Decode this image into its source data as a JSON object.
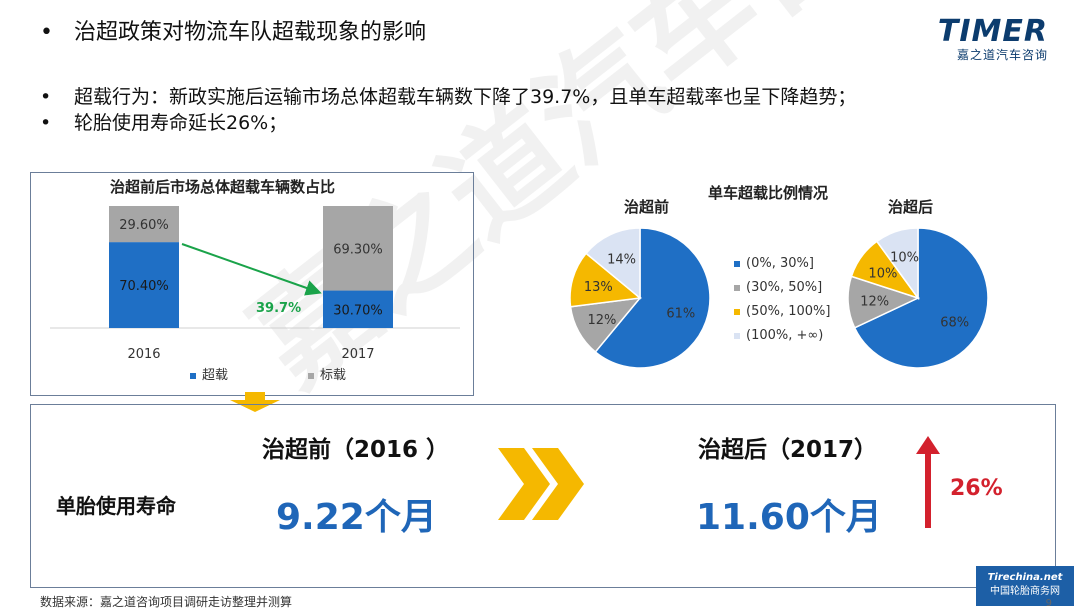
{
  "header": {
    "title": "治超政策对物流车队超载现象的影响",
    "bullet_glyph": "•",
    "logo_text": "TIMER",
    "logo_sub": "嘉之道汽车咨询",
    "watermark": "嘉之道汽车咨询"
  },
  "bullets": [
    "超载行为：新政实施后运输市场总体超载车辆数下降了39.7%，且单车超载率也呈下降趋势；",
    "轮胎使用寿命延长26%；"
  ],
  "chart_data": [
    {
      "type": "bar",
      "title": "治超前后市场总体超载车辆数占比",
      "categories": [
        "2016",
        "2017"
      ],
      "series": [
        {
          "name": "超载",
          "values": [
            70.4,
            30.7
          ],
          "labels": [
            "70.40%",
            "30.70%"
          ],
          "color": "#1f6fc5"
        },
        {
          "name": "标载",
          "values": [
            29.6,
            69.3
          ],
          "labels": [
            "29.60%",
            "69.30%"
          ],
          "color": "#a6a6a6"
        }
      ],
      "stacked": true,
      "ylim": [
        0,
        100
      ],
      "annotation": "39.7%",
      "annotation_color": "#1aa34a"
    },
    {
      "type": "pie",
      "title": "单车超载比例情况",
      "subtitle": "治超前",
      "labels": [
        "(0%, 30%]",
        "(30%, 50%]",
        "(50%, 100%]",
        "(100%, +∞)"
      ],
      "values": [
        61,
        12,
        13,
        14
      ],
      "value_labels": [
        "61%",
        "12%",
        "13%",
        "14%"
      ],
      "colors": [
        "#1f6fc5",
        "#a6a6a6",
        "#f5b800",
        "#dae3f3"
      ]
    },
    {
      "type": "pie",
      "subtitle": "治超后",
      "labels": [
        "(0%, 30%]",
        "(30%, 50%]",
        "(50%, 100%]",
        "(100%, +∞)"
      ],
      "values": [
        68,
        12,
        10,
        10
      ],
      "value_labels": [
        "68%",
        "12%",
        "10%",
        "10%"
      ],
      "colors": [
        "#1f6fc5",
        "#a6a6a6",
        "#f5b800",
        "#dae3f3"
      ]
    }
  ],
  "bottom": {
    "row_label": "单胎使用寿命",
    "before_heading": "治超前（2016 ）",
    "before_value": "9.22个月",
    "after_heading": "治超后（2017）",
    "after_value": "11.60个月",
    "increase": "26%",
    "value_color": "#1f66b8",
    "increase_color": "#d3212d"
  },
  "footer": {
    "source": "数据来源：嘉之道咨询项目调研走访整理并测算",
    "page": "9",
    "badge_line1": "Tirechina.net",
    "badge_line2": "中国轮胎商务网"
  }
}
